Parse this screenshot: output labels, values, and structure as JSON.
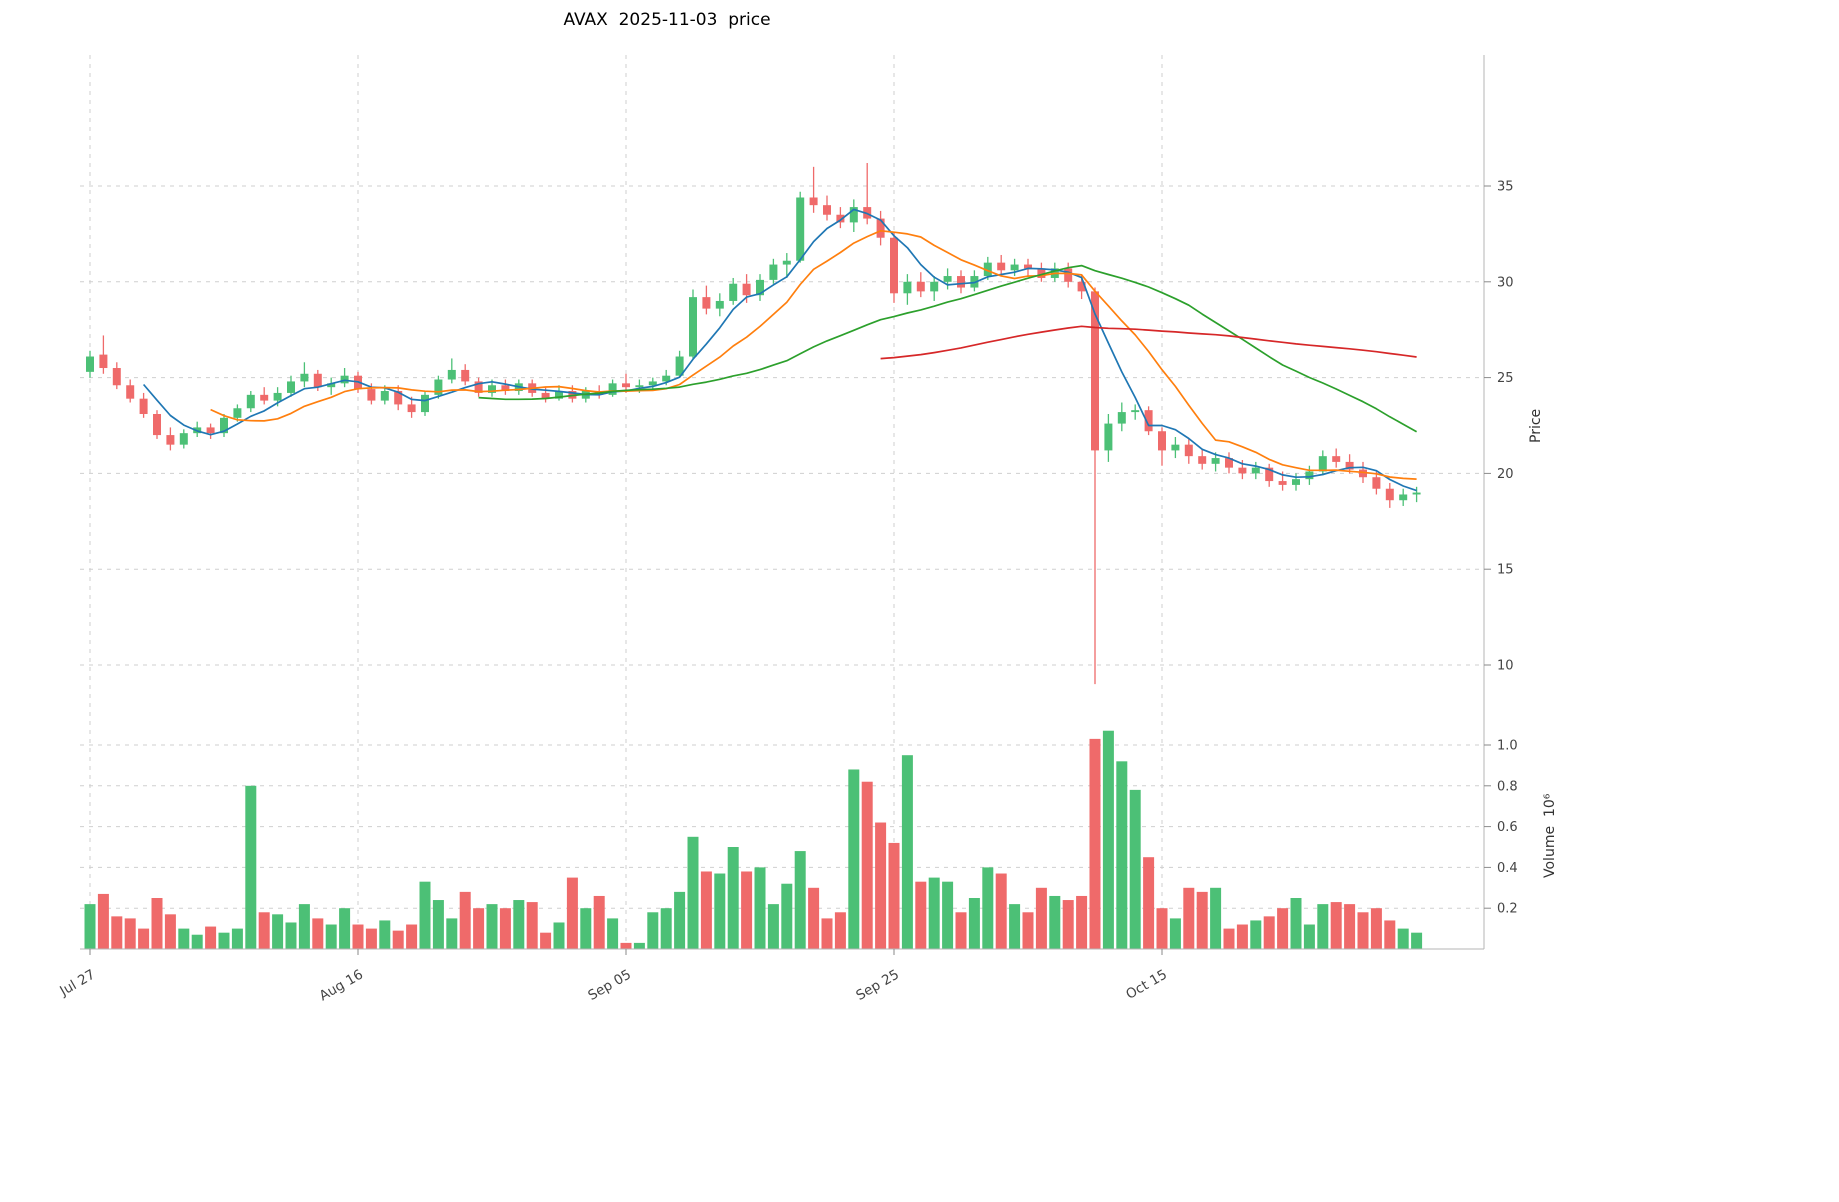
{
  "style": {
    "background": "#ffffff",
    "grid_color": "#cfcfcf",
    "axis_color": "#b5b5b5",
    "tick_mark_color": "#8a8a8a",
    "tick_label_color": "#444444",
    "title_color": "#000000"
  },
  "chart_data": {
    "type": "candlestick",
    "title": "AVAX  2025-11-03  price",
    "ylabel": "Price",
    "volume_ylabel": "Volume  10⁶",
    "legend_position": "none",
    "grid": true,
    "up_color": "#4cc076",
    "down_color": "#ef6a6a",
    "moving_averages": [
      {
        "window": 5,
        "color": "#1f77b4"
      },
      {
        "window": 10,
        "color": "#ff7f0e"
      },
      {
        "window": 30,
        "color": "#2ca02c"
      },
      {
        "window": 60,
        "color": "#d62728"
      }
    ],
    "x_axis": {
      "ticks": [
        {
          "index": 0,
          "label": "Jul 27"
        },
        {
          "index": 20,
          "label": "Aug 16"
        },
        {
          "index": 40,
          "label": "Sep 05"
        },
        {
          "index": 60,
          "label": "Sep 25"
        },
        {
          "index": 80,
          "label": "Oct 15"
        }
      ]
    },
    "price_axis": {
      "ticks": [
        10,
        15,
        20,
        25,
        30,
        35
      ],
      "range": [
        8.5,
        36.6
      ]
    },
    "volume_axis": {
      "ticks": [
        0.2,
        0.4,
        0.6,
        0.8,
        1.0
      ],
      "unit": "10⁶",
      "range": [
        0,
        1.15
      ]
    },
    "dates": [
      "2025-07-27",
      "2025-07-28",
      "2025-07-29",
      "2025-07-30",
      "2025-07-31",
      "2025-08-01",
      "2025-08-02",
      "2025-08-03",
      "2025-08-04",
      "2025-08-05",
      "2025-08-06",
      "2025-08-07",
      "2025-08-08",
      "2025-08-09",
      "2025-08-10",
      "2025-08-11",
      "2025-08-12",
      "2025-08-13",
      "2025-08-14",
      "2025-08-15",
      "2025-08-16",
      "2025-08-17",
      "2025-08-18",
      "2025-08-19",
      "2025-08-20",
      "2025-08-21",
      "2025-08-22",
      "2025-08-23",
      "2025-08-24",
      "2025-08-25",
      "2025-08-26",
      "2025-08-27",
      "2025-08-28",
      "2025-08-29",
      "2025-08-30",
      "2025-08-31",
      "2025-09-01",
      "2025-09-02",
      "2025-09-03",
      "2025-09-04",
      "2025-09-05",
      "2025-09-06",
      "2025-09-07",
      "2025-09-08",
      "2025-09-09",
      "2025-09-10",
      "2025-09-11",
      "2025-09-12",
      "2025-09-13",
      "2025-09-14",
      "2025-09-15",
      "2025-09-16",
      "2025-09-17",
      "2025-09-18",
      "2025-09-19",
      "2025-09-20",
      "2025-09-21",
      "2025-09-22",
      "2025-09-23",
      "2025-09-24",
      "2025-09-25",
      "2025-09-26",
      "2025-09-27",
      "2025-09-28",
      "2025-09-29",
      "2025-09-30",
      "2025-10-01",
      "2025-10-02",
      "2025-10-03",
      "2025-10-04",
      "2025-10-05",
      "2025-10-06",
      "2025-10-07",
      "2025-10-08",
      "2025-10-09",
      "2025-10-10",
      "2025-10-11",
      "2025-10-12",
      "2025-10-13",
      "2025-10-14",
      "2025-10-15",
      "2025-10-16",
      "2025-10-17",
      "2025-10-18",
      "2025-10-19",
      "2025-10-20",
      "2025-10-21",
      "2025-10-22",
      "2025-10-23",
      "2025-10-24",
      "2025-10-25",
      "2025-10-26",
      "2025-10-27",
      "2025-10-28",
      "2025-10-29",
      "2025-10-30",
      "2025-10-31",
      "2025-11-01",
      "2025-11-02",
      "2025-11-03"
    ],
    "open": [
      25.3,
      26.2,
      25.5,
      24.6,
      23.9,
      23.1,
      22.0,
      21.5,
      22.1,
      22.4,
      22.1,
      22.9,
      23.4,
      24.1,
      23.8,
      24.2,
      24.8,
      25.2,
      24.5,
      24.7,
      25.1,
      24.4,
      23.8,
      24.3,
      23.6,
      23.2,
      24.1,
      24.9,
      25.4,
      24.8,
      24.2,
      24.6,
      24.3,
      24.7,
      24.2,
      23.9,
      24.3,
      23.9,
      24.3,
      24.1,
      24.7,
      24.5,
      24.6,
      24.8,
      25.1,
      26.1,
      29.2,
      28.6,
      29.0,
      29.9,
      29.3,
      30.1,
      30.9,
      31.1,
      34.4,
      34.0,
      33.5,
      33.1,
      33.9,
      33.3,
      32.3,
      29.4,
      30.0,
      29.5,
      30.0,
      30.3,
      29.7,
      30.3,
      31.0,
      30.6,
      30.9,
      30.7,
      30.2,
      30.7,
      30.0,
      29.5,
      21.2,
      22.6,
      23.2,
      23.3,
      22.2,
      21.2,
      21.5,
      20.9,
      20.5,
      20.8,
      20.3,
      20.0,
      20.3,
      19.6,
      19.4,
      19.7,
      20.1,
      20.9,
      20.6,
      20.2,
      19.8,
      19.2,
      18.6,
      18.9
    ],
    "high": [
      26.4,
      27.2,
      25.8,
      24.9,
      24.2,
      23.3,
      22.4,
      22.3,
      22.7,
      22.6,
      23.1,
      23.6,
      24.3,
      24.5,
      24.5,
      25.1,
      25.8,
      25.4,
      25.0,
      25.5,
      25.3,
      24.7,
      24.6,
      24.6,
      24.0,
      24.3,
      25.1,
      26.0,
      25.7,
      25.0,
      24.9,
      24.9,
      24.9,
      24.9,
      24.5,
      24.6,
      24.6,
      24.5,
      24.6,
      24.9,
      25.2,
      24.9,
      25.0,
      25.4,
      26.4,
      29.6,
      29.8,
      29.4,
      30.2,
      30.4,
      30.4,
      31.2,
      31.5,
      34.7,
      36.0,
      34.5,
      33.9,
      34.3,
      36.2,
      33.7,
      32.6,
      30.4,
      30.5,
      30.3,
      30.7,
      30.6,
      30.6,
      31.3,
      31.4,
      31.2,
      31.2,
      31.0,
      31.0,
      31.0,
      30.4,
      29.7,
      23.1,
      23.7,
      23.6,
      23.5,
      22.4,
      21.9,
      21.8,
      21.3,
      21.1,
      21.1,
      20.7,
      20.6,
      20.5,
      20.1,
      20.0,
      20.4,
      21.2,
      21.3,
      21.0,
      20.6,
      20.1,
      19.5,
      19.2,
      19.3
    ],
    "low": [
      25.0,
      25.2,
      24.4,
      23.7,
      22.9,
      21.8,
      21.2,
      21.3,
      21.9,
      21.8,
      21.9,
      22.7,
      23.2,
      23.6,
      23.5,
      24.0,
      24.5,
      24.3,
      24.1,
      24.5,
      24.2,
      23.6,
      23.6,
      23.3,
      22.9,
      23.0,
      23.9,
      24.7,
      24.6,
      24.0,
      24.0,
      24.1,
      24.1,
      24.0,
      23.7,
      23.8,
      23.7,
      23.7,
      23.9,
      24.0,
      24.2,
      24.2,
      24.4,
      24.6,
      25.0,
      26.0,
      28.3,
      28.2,
      28.8,
      28.9,
      29.0,
      29.9,
      30.2,
      31.0,
      33.6,
      33.2,
      32.8,
      32.6,
      33.0,
      31.9,
      28.9,
      28.8,
      29.2,
      29.0,
      29.6,
      29.4,
      29.5,
      30.1,
      30.3,
      30.3,
      30.3,
      30.0,
      30.0,
      29.7,
      29.1,
      9.0,
      20.6,
      22.2,
      22.8,
      22.0,
      20.4,
      20.8,
      20.5,
      20.2,
      20.1,
      20.0,
      19.7,
      19.7,
      19.3,
      19.1,
      19.1,
      19.4,
      19.9,
      20.3,
      20.0,
      19.5,
      18.9,
      18.2,
      18.3,
      18.5
    ],
    "close": [
      26.1,
      25.5,
      24.6,
      23.9,
      23.1,
      22.0,
      21.5,
      22.1,
      22.4,
      22.1,
      22.9,
      23.4,
      24.1,
      23.8,
      24.2,
      24.8,
      25.2,
      24.5,
      24.7,
      25.1,
      24.4,
      23.8,
      24.3,
      23.6,
      23.2,
      24.1,
      24.9,
      25.4,
      24.8,
      24.2,
      24.6,
      24.3,
      24.7,
      24.2,
      23.9,
      24.3,
      23.9,
      24.3,
      24.1,
      24.7,
      24.5,
      24.6,
      24.8,
      25.1,
      26.1,
      29.2,
      28.6,
      29.0,
      29.9,
      29.3,
      30.1,
      30.9,
      31.1,
      34.4,
      34.0,
      33.5,
      33.1,
      33.9,
      33.3,
      32.3,
      29.4,
      30.0,
      29.5,
      30.0,
      30.3,
      29.7,
      30.3,
      31.0,
      30.6,
      30.9,
      30.7,
      30.2,
      30.7,
      30.0,
      29.5,
      21.2,
      22.6,
      23.2,
      23.3,
      22.2,
      21.2,
      21.5,
      20.9,
      20.5,
      20.8,
      20.3,
      20.0,
      20.3,
      19.6,
      19.4,
      19.7,
      20.1,
      20.9,
      20.6,
      20.2,
      19.8,
      19.2,
      18.6,
      18.9,
      19.0
    ],
    "volume": [
      0.22,
      0.27,
      0.16,
      0.15,
      0.1,
      0.25,
      0.17,
      0.1,
      0.07,
      0.11,
      0.08,
      0.1,
      0.8,
      0.18,
      0.17,
      0.13,
      0.22,
      0.15,
      0.12,
      0.2,
      0.12,
      0.1,
      0.14,
      0.09,
      0.12,
      0.33,
      0.24,
      0.15,
      0.28,
      0.2,
      0.22,
      0.2,
      0.24,
      0.23,
      0.08,
      0.13,
      0.35,
      0.2,
      0.26,
      0.15,
      0.03,
      0.03,
      0.18,
      0.2,
      0.28,
      0.55,
      0.38,
      0.37,
      0.5,
      0.38,
      0.4,
      0.22,
      0.32,
      0.48,
      0.3,
      0.15,
      0.18,
      0.88,
      0.82,
      0.62,
      0.52,
      0.95,
      0.33,
      0.35,
      0.33,
      0.18,
      0.25,
      0.4,
      0.37,
      0.22,
      0.18,
      0.3,
      0.26,
      0.24,
      0.26,
      1.03,
      1.07,
      0.92,
      0.78,
      0.45,
      0.2,
      0.15,
      0.3,
      0.28,
      0.3,
      0.1,
      0.12,
      0.14,
      0.16,
      0.2,
      0.25,
      0.12,
      0.22,
      0.23,
      0.22,
      0.18,
      0.2,
      0.14,
      0.1,
      0.08
    ]
  }
}
